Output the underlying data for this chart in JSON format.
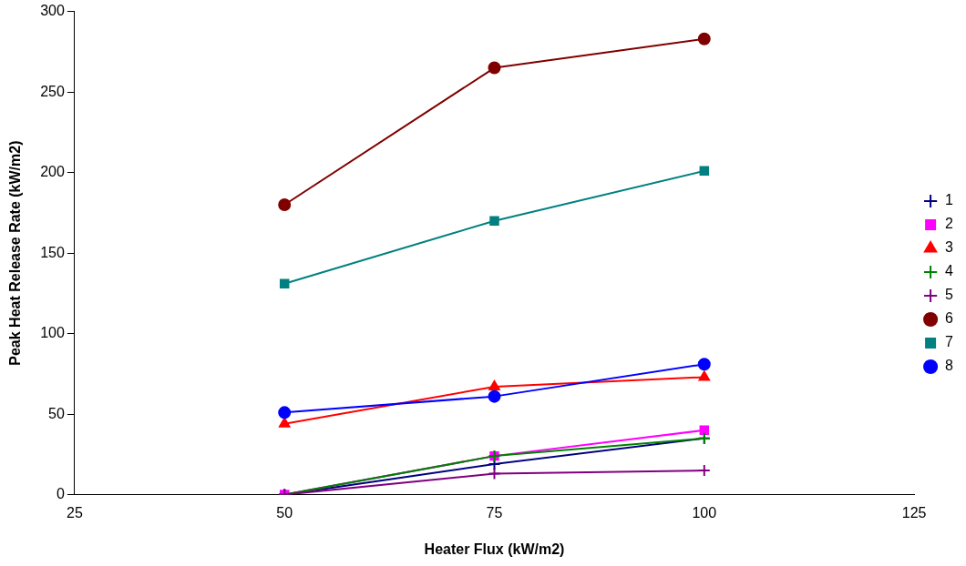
{
  "chart_data": {
    "type": "line",
    "xlabel": "Heater Flux (kW/m2)",
    "ylabel": "Peak Heat Release Rate (kW/m2)",
    "x": [
      50,
      75,
      100
    ],
    "xlim": [
      25,
      125
    ],
    "xticks": [
      25,
      50,
      75,
      100,
      125
    ],
    "ylim": [
      0,
      300
    ],
    "yticks": [
      0,
      50,
      100,
      150,
      200,
      250,
      300
    ],
    "grid": false,
    "legend": "right",
    "line_style": "solid",
    "series": [
      {
        "name": "1",
        "color": "#000080",
        "marker": "cross",
        "values": [
          0,
          19,
          35
        ]
      },
      {
        "name": "2",
        "color": "#ff00ff",
        "marker": "square",
        "values": [
          0,
          24,
          40
        ]
      },
      {
        "name": "3",
        "color": "#ff0000",
        "marker": "triangle",
        "values": [
          44,
          67,
          73
        ]
      },
      {
        "name": "4",
        "color": "#008000",
        "marker": "cross",
        "values": [
          0,
          24,
          35
        ]
      },
      {
        "name": "5",
        "color": "#800080",
        "marker": "cross",
        "values": [
          0,
          13,
          15
        ]
      },
      {
        "name": "6",
        "color": "#800000",
        "marker": "circle",
        "values": [
          180,
          265,
          283
        ]
      },
      {
        "name": "7",
        "color": "#008080",
        "marker": "square",
        "values": [
          131,
          170,
          201
        ]
      },
      {
        "name": "8",
        "color": "#0000ff",
        "marker": "circle",
        "values": [
          51,
          61,
          81
        ]
      }
    ]
  }
}
